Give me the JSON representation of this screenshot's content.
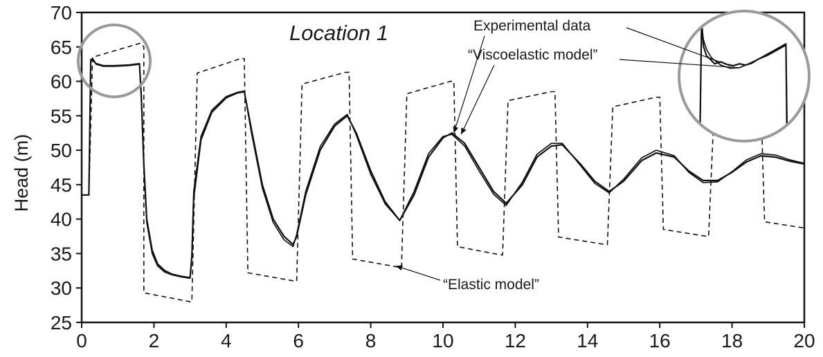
{
  "chart_data": {
    "type": "line",
    "title": "Location 1",
    "xlabel": "",
    "ylabel": "Head (m)",
    "xlim": [
      0,
      20
    ],
    "ylim": [
      25,
      70
    ],
    "xticks": [
      0,
      2,
      4,
      6,
      8,
      10,
      12,
      14,
      16,
      18,
      20
    ],
    "yticks": [
      25,
      30,
      35,
      40,
      45,
      50,
      55,
      60,
      65,
      70
    ],
    "grid": false,
    "legend": "none",
    "annotations": [
      {
        "text": "Experimental data",
        "x": 10.3,
        "y": 52.5
      },
      {
        "text": "“Viscoelastic model”",
        "x": 10.5,
        "y": 52.3
      },
      {
        "text": "“Elastic model”",
        "x": 8.7,
        "y": 33.2
      }
    ],
    "inset_zoom": {
      "description_note": "zoom of first pressure plateau, circled near x≈1, y≈63"
    },
    "series": [
      {
        "key": "experimental",
        "style": "solid-thick",
        "x": [
          0.0,
          0.2,
          0.25,
          0.3,
          0.4,
          0.6,
          0.9,
          1.3,
          1.6,
          1.65,
          1.72,
          1.8,
          1.95,
          2.1,
          2.3,
          2.5,
          2.75,
          3.0,
          3.05,
          3.1,
          3.3,
          3.6,
          4.0,
          4.3,
          4.5,
          4.7,
          5.0,
          5.3,
          5.6,
          5.85,
          5.95,
          6.2,
          6.6,
          7.0,
          7.35,
          7.6,
          8.0,
          8.4,
          8.8,
          9.2,
          9.6,
          10.0,
          10.25,
          10.6,
          11.0,
          11.4,
          11.75,
          12.2,
          12.6,
          13.0,
          13.3,
          13.8,
          14.2,
          14.6,
          15.0,
          15.5,
          15.9,
          16.4,
          16.8,
          17.2,
          17.6,
          18.0,
          18.4,
          18.8,
          19.2,
          19.6,
          20.0
        ],
        "y": [
          43.5,
          43.5,
          63.0,
          63.3,
          62.5,
          62.2,
          62.2,
          62.3,
          62.5,
          58.0,
          48.0,
          40.0,
          35.5,
          33.5,
          32.5,
          32.0,
          31.7,
          31.5,
          34.5,
          43.0,
          51.5,
          55.5,
          57.6,
          58.3,
          58.5,
          53.0,
          45.0,
          40.0,
          37.5,
          36.3,
          37.5,
          43.5,
          50.0,
          53.5,
          55.0,
          52.5,
          47.0,
          42.5,
          39.8,
          43.5,
          49.0,
          51.8,
          52.5,
          51.0,
          47.5,
          44.0,
          42.3,
          45.0,
          49.0,
          50.6,
          50.8,
          48.0,
          45.5,
          44.0,
          45.5,
          48.5,
          49.6,
          49.0,
          47.0,
          45.6,
          45.6,
          46.8,
          48.3,
          49.2,
          49.0,
          48.4,
          48.0
        ]
      },
      {
        "key": "viscoelastic",
        "style": "solid-thin",
        "x": [
          0.0,
          0.2,
          0.25,
          0.3,
          0.4,
          0.6,
          0.9,
          1.3,
          1.6,
          1.65,
          1.72,
          1.8,
          1.95,
          2.1,
          2.3,
          2.5,
          2.75,
          3.0,
          3.05,
          3.1,
          3.3,
          3.6,
          4.0,
          4.3,
          4.5,
          4.7,
          5.0,
          5.3,
          5.6,
          5.85,
          5.95,
          6.2,
          6.6,
          7.0,
          7.35,
          7.6,
          8.0,
          8.4,
          8.8,
          9.2,
          9.6,
          10.0,
          10.25,
          10.6,
          11.0,
          11.4,
          11.75,
          12.2,
          12.6,
          13.0,
          13.3,
          13.8,
          14.2,
          14.6,
          15.0,
          15.5,
          15.9,
          16.4,
          16.8,
          17.2,
          17.6,
          18.0,
          18.4,
          18.8,
          19.2,
          19.6,
          20.0
        ],
        "y": [
          43.5,
          43.5,
          63.2,
          63.0,
          62.6,
          62.3,
          62.3,
          62.4,
          62.6,
          57.5,
          47.5,
          39.5,
          35.0,
          33.2,
          32.3,
          31.9,
          31.6,
          31.4,
          35.0,
          44.0,
          52.0,
          55.8,
          57.8,
          58.4,
          58.6,
          52.5,
          44.5,
          39.5,
          37.0,
          36.0,
          37.8,
          44.0,
          50.5,
          53.8,
          55.2,
          52.2,
          46.5,
          42.2,
          39.8,
          44.0,
          49.5,
          52.0,
          52.3,
          50.6,
          47.0,
          43.6,
          42.0,
          45.4,
          49.4,
          51.0,
          51.0,
          47.8,
          45.2,
          43.8,
          45.8,
          48.9,
          50.0,
          49.2,
          46.8,
          45.3,
          45.4,
          46.9,
          48.6,
          49.5,
          49.3,
          48.6,
          48.1
        ]
      },
      {
        "key": "elastic",
        "style": "dashed",
        "x": [
          0.2,
          0.3,
          1.6,
          1.65,
          1.72,
          1.72,
          3.0,
          3.05,
          3.2,
          4.4,
          4.5,
          4.6,
          5.9,
          5.95,
          6.1,
          7.3,
          7.4,
          7.5,
          8.8,
          8.85,
          9.0,
          10.2,
          10.3,
          10.4,
          11.6,
          11.65,
          11.8,
          13.0,
          13.1,
          13.2,
          14.5,
          14.55,
          14.7,
          15.9,
          16.0,
          16.1,
          17.3,
          17.35,
          17.5,
          18.7,
          18.8,
          18.9,
          20.0
        ],
        "y": [
          43.5,
          63.5,
          65.5,
          65.5,
          65.0,
          29.3,
          28.0,
          28.0,
          61.2,
          63.3,
          63.3,
          32.2,
          31.0,
          31.0,
          59.6,
          61.3,
          61.3,
          34.2,
          33.0,
          33.0,
          58.2,
          60.0,
          60.0,
          36.0,
          34.8,
          34.8,
          57.2,
          58.5,
          58.5,
          37.4,
          36.3,
          36.3,
          56.3,
          57.7,
          57.7,
          38.5,
          37.5,
          37.5,
          55.5,
          56.8,
          56.8,
          39.6,
          38.7
        ]
      }
    ]
  }
}
